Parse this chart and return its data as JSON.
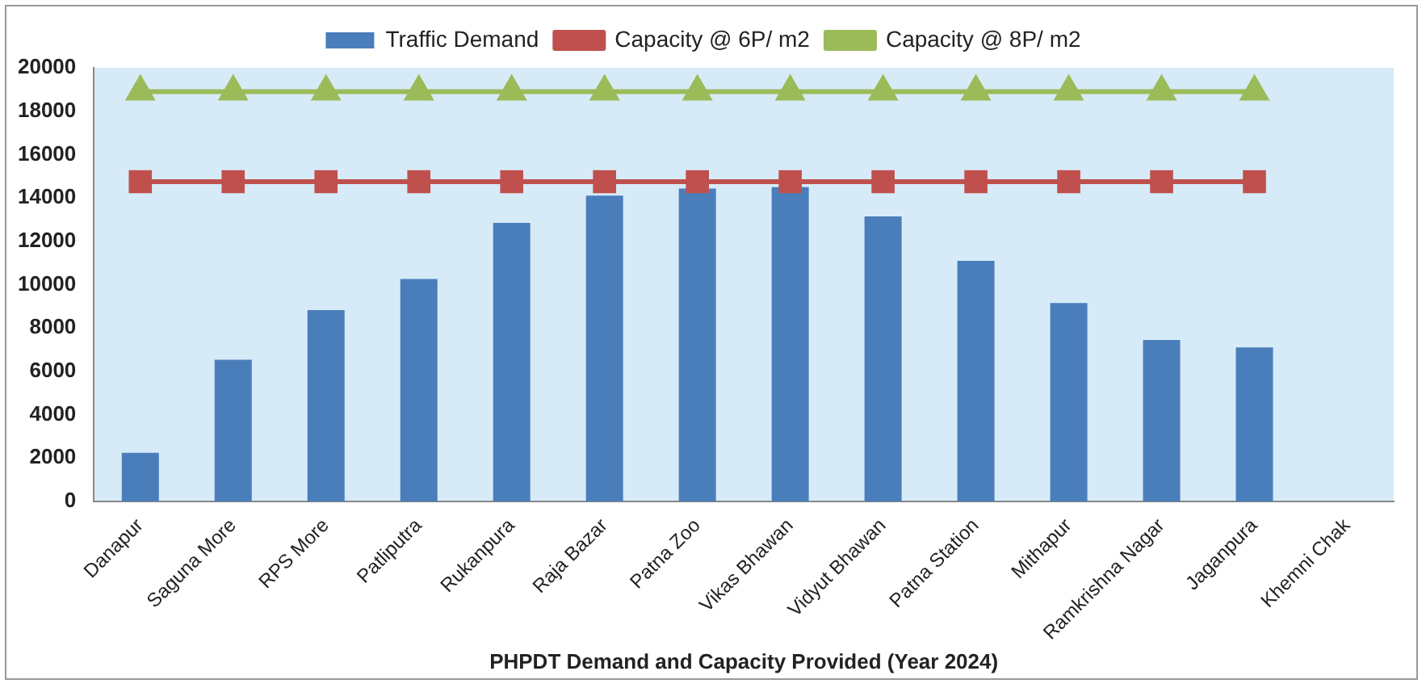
{
  "chart_data": {
    "type": "bar",
    "xlabel": "PHPDT Demand and Capacity Provided (Year 2024)",
    "categories": [
      "Danapur",
      "Saguna More",
      "RPS More",
      "Patliputra",
      "Rukanpura",
      "Raja Bazar",
      "Patna Zoo",
      "Vikas Bhawan",
      "Vidyut Bhawan",
      "Patna Station",
      "Mithapur",
      "Ramkrishna Nagar",
      "Jaganpura",
      "Khemni Chak"
    ],
    "series": [
      {
        "name": "Traffic Demand",
        "color": "#4a7ebb",
        "values": [
          2240,
          6540,
          8830,
          10260,
          12850,
          14110,
          14430,
          14500,
          13150,
          11100,
          9150,
          7450,
          7100,
          null
        ]
      },
      {
        "name": "Capacity @ 6P/ m2",
        "type": "line",
        "marker": "square",
        "color": "#c0504d",
        "values": [
          14750,
          14750,
          14750,
          14750,
          14750,
          14750,
          14750,
          14750,
          14750,
          14750,
          14750,
          14750,
          14750,
          null
        ]
      },
      {
        "name": "Capacity @ 8P/ m2",
        "type": "line",
        "marker": "triangle",
        "color": "#9bbb59",
        "values": [
          18900,
          18900,
          18900,
          18900,
          18900,
          18900,
          18900,
          18900,
          18900,
          18900,
          18900,
          18900,
          18900,
          null
        ]
      }
    ],
    "ylim": [
      0,
      20000
    ],
    "yticks": [
      0,
      2000,
      4000,
      6000,
      8000,
      10000,
      12000,
      14000,
      16000,
      18000,
      20000
    ],
    "grid": false,
    "legend": "top"
  }
}
